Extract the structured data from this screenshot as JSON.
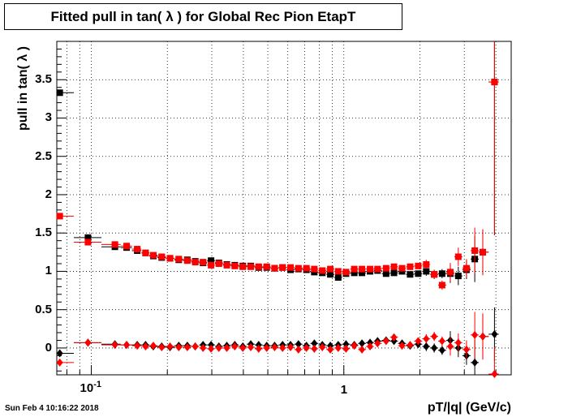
{
  "title": "Fitted pull in tan( λ ) for Global Rec Pion EtapT",
  "timestamp": "Sun Feb  4 10:16:22 2018",
  "chart_data": {
    "type": "scatter",
    "title": "Fitted pull in tan( λ ) for Global Rec Pion EtapT",
    "xlabel": "pT/|q| (GeV/c)",
    "ylabel": "pull in tan( λ )",
    "xscale": "log",
    "xlim": [
      0.073,
      4.6
    ],
    "ylim": [
      -0.35,
      4.0
    ],
    "grid": true,
    "x_tick_labels": [
      {
        "value": 0.1,
        "label": "10^{-1}"
      },
      {
        "value": 1,
        "label": "1"
      }
    ],
    "y_tick_labels": [
      "0",
      "0.5",
      "1",
      "1.5",
      "2",
      "2.5",
      "3",
      "3.5"
    ],
    "series": [
      {
        "color": "#000000",
        "marker": "square",
        "points": [
          [
            0.075,
            3.33
          ],
          [
            0.097,
            1.44
          ],
          [
            0.124,
            1.32
          ],
          [
            0.138,
            1.31
          ],
          [
            0.152,
            1.27
          ],
          [
            0.164,
            1.24
          ],
          [
            0.176,
            1.2
          ],
          [
            0.19,
            1.18
          ],
          [
            0.205,
            1.17
          ],
          [
            0.222,
            1.15
          ],
          [
            0.24,
            1.15
          ],
          [
            0.258,
            1.13
          ],
          [
            0.277,
            1.11
          ],
          [
            0.298,
            1.14
          ],
          [
            0.32,
            1.11
          ],
          [
            0.344,
            1.09
          ],
          [
            0.37,
            1.08
          ],
          [
            0.398,
            1.07
          ],
          [
            0.428,
            1.07
          ],
          [
            0.46,
            1.05
          ],
          [
            0.495,
            1.05
          ],
          [
            0.532,
            1.04
          ],
          [
            0.572,
            1.05
          ],
          [
            0.615,
            1.02
          ],
          [
            0.661,
            1.03
          ],
          [
            0.711,
            1.02
          ],
          [
            0.764,
            0.99
          ],
          [
            0.822,
            0.98
          ],
          [
            0.884,
            0.96
          ],
          [
            0.95,
            0.92
          ],
          [
            1.02,
            0.97
          ],
          [
            1.1,
            0.98
          ],
          [
            1.18,
            0.98
          ],
          [
            1.27,
            1.0
          ],
          [
            1.36,
            1.01
          ],
          [
            1.47,
            0.97
          ],
          [
            1.58,
            0.98
          ],
          [
            1.7,
            1.0
          ],
          [
            1.83,
            0.96
          ],
          [
            1.97,
            0.97
          ],
          [
            2.12,
            1.0
          ],
          [
            2.28,
            0.96
          ],
          [
            2.45,
            0.97
          ],
          [
            2.64,
            0.97
          ],
          [
            2.84,
            0.94
          ],
          [
            3.06,
            1.02
          ],
          [
            3.3,
            1.16
          ],
          [
            3.55,
            1.25
          ],
          [
            3.95,
            3.47
          ]
        ]
      },
      {
        "color": "#ff0000",
        "marker": "square",
        "points": [
          [
            0.075,
            1.72
          ],
          [
            0.097,
            1.38
          ],
          [
            0.124,
            1.35
          ],
          [
            0.138,
            1.33
          ],
          [
            0.152,
            1.29
          ],
          [
            0.164,
            1.24
          ],
          [
            0.176,
            1.21
          ],
          [
            0.19,
            1.19
          ],
          [
            0.205,
            1.17
          ],
          [
            0.222,
            1.16
          ],
          [
            0.24,
            1.14
          ],
          [
            0.258,
            1.12
          ],
          [
            0.277,
            1.12
          ],
          [
            0.298,
            1.08
          ],
          [
            0.32,
            1.1
          ],
          [
            0.344,
            1.08
          ],
          [
            0.37,
            1.07
          ],
          [
            0.398,
            1.06
          ],
          [
            0.428,
            1.06
          ],
          [
            0.46,
            1.06
          ],
          [
            0.495,
            1.06
          ],
          [
            0.532,
            1.04
          ],
          [
            0.572,
            1.05
          ],
          [
            0.615,
            1.05
          ],
          [
            0.661,
            1.04
          ],
          [
            0.711,
            1.04
          ],
          [
            0.764,
            1.03
          ],
          [
            0.822,
            1.01
          ],
          [
            0.884,
            1.03
          ],
          [
            0.95,
            1.0
          ],
          [
            1.02,
            0.99
          ],
          [
            1.1,
            1.03
          ],
          [
            1.18,
            1.03
          ],
          [
            1.27,
            1.03
          ],
          [
            1.36,
            1.03
          ],
          [
            1.47,
            1.04
          ],
          [
            1.58,
            1.06
          ],
          [
            1.7,
            1.04
          ],
          [
            1.83,
            1.06
          ],
          [
            1.97,
            1.07
          ],
          [
            2.12,
            1.09
          ],
          [
            2.28,
            0.96
          ],
          [
            2.45,
            0.82
          ],
          [
            2.64,
            0.99
          ],
          [
            2.84,
            1.19
          ],
          [
            3.06,
            1.04
          ],
          [
            3.3,
            1.27
          ],
          [
            3.55,
            1.25
          ],
          [
            3.95,
            3.47
          ]
        ]
      },
      {
        "color": "#000000",
        "marker": "diamond",
        "points": [
          [
            0.075,
            -0.07
          ],
          [
            0.097,
            0.07
          ],
          [
            0.124,
            0.05
          ],
          [
            0.138,
            0.04
          ],
          [
            0.152,
            0.04
          ],
          [
            0.164,
            0.04
          ],
          [
            0.176,
            0.02
          ],
          [
            0.19,
            0.02
          ],
          [
            0.205,
            0.01
          ],
          [
            0.222,
            0.03
          ],
          [
            0.24,
            0.03
          ],
          [
            0.258,
            0.02
          ],
          [
            0.277,
            0.04
          ],
          [
            0.298,
            0.04
          ],
          [
            0.32,
            0.02
          ],
          [
            0.344,
            0.03
          ],
          [
            0.37,
            0.04
          ],
          [
            0.398,
            0.02
          ],
          [
            0.428,
            0.05
          ],
          [
            0.46,
            0.04
          ],
          [
            0.495,
            0.03
          ],
          [
            0.532,
            0.03
          ],
          [
            0.572,
            0.04
          ],
          [
            0.615,
            0.04
          ],
          [
            0.661,
            0.05
          ],
          [
            0.711,
            0.03
          ],
          [
            0.764,
            0.06
          ],
          [
            0.822,
            0.04
          ],
          [
            0.884,
            0.03
          ],
          [
            0.95,
            0.04
          ],
          [
            1.02,
            0.05
          ],
          [
            1.1,
            0.04
          ],
          [
            1.18,
            0.06
          ],
          [
            1.27,
            0.07
          ],
          [
            1.36,
            0.09
          ],
          [
            1.47,
            0.1
          ],
          [
            1.58,
            0.09
          ],
          [
            1.7,
            0.06
          ],
          [
            1.83,
            0.03
          ],
          [
            1.97,
            0.05
          ],
          [
            2.12,
            0.02
          ],
          [
            2.28,
            0.0
          ],
          [
            2.45,
            -0.03
          ],
          [
            2.64,
            0.1
          ],
          [
            2.84,
            0.0
          ],
          [
            3.06,
            -0.1
          ],
          [
            3.3,
            -0.19
          ],
          [
            3.55,
            0.15
          ],
          [
            3.95,
            0.18
          ]
        ]
      },
      {
        "color": "#ff0000",
        "marker": "diamond",
        "points": [
          [
            0.075,
            -0.19
          ],
          [
            0.097,
            0.07
          ],
          [
            0.124,
            0.04
          ],
          [
            0.138,
            0.04
          ],
          [
            0.152,
            0.03
          ],
          [
            0.164,
            0.02
          ],
          [
            0.176,
            0.03
          ],
          [
            0.19,
            0.01
          ],
          [
            0.205,
            0.02
          ],
          [
            0.222,
            0.01
          ],
          [
            0.24,
            0.01
          ],
          [
            0.258,
            0.02
          ],
          [
            0.277,
            0.0
          ],
          [
            0.298,
            -0.01
          ],
          [
            0.32,
            0.0
          ],
          [
            0.344,
            0.0
          ],
          [
            0.37,
            0.02
          ],
          [
            0.398,
            0.0
          ],
          [
            0.428,
            0.01
          ],
          [
            0.46,
            -0.01
          ],
          [
            0.495,
            0.0
          ],
          [
            0.532,
            0.01
          ],
          [
            0.572,
            0.0
          ],
          [
            0.615,
            0.01
          ],
          [
            0.661,
            -0.02
          ],
          [
            0.711,
            0.0
          ],
          [
            0.764,
            -0.01
          ],
          [
            0.822,
            0.01
          ],
          [
            0.884,
            -0.02
          ],
          [
            0.95,
            0.0
          ],
          [
            1.02,
            -0.01
          ],
          [
            1.1,
            0.03
          ],
          [
            1.18,
            -0.02
          ],
          [
            1.27,
            0.02
          ],
          [
            1.36,
            0.06
          ],
          [
            1.47,
            0.09
          ],
          [
            1.58,
            0.14
          ],
          [
            1.7,
            0.03
          ],
          [
            1.83,
            0.04
          ],
          [
            1.97,
            0.09
          ],
          [
            2.12,
            0.12
          ],
          [
            2.28,
            0.15
          ],
          [
            2.45,
            0.09
          ],
          [
            2.64,
            0.02
          ],
          [
            2.84,
            0.07
          ],
          [
            3.06,
            -0.02
          ],
          [
            3.3,
            0.17
          ],
          [
            3.55,
            0.15
          ],
          [
            3.95,
            -0.34
          ]
        ]
      }
    ]
  }
}
